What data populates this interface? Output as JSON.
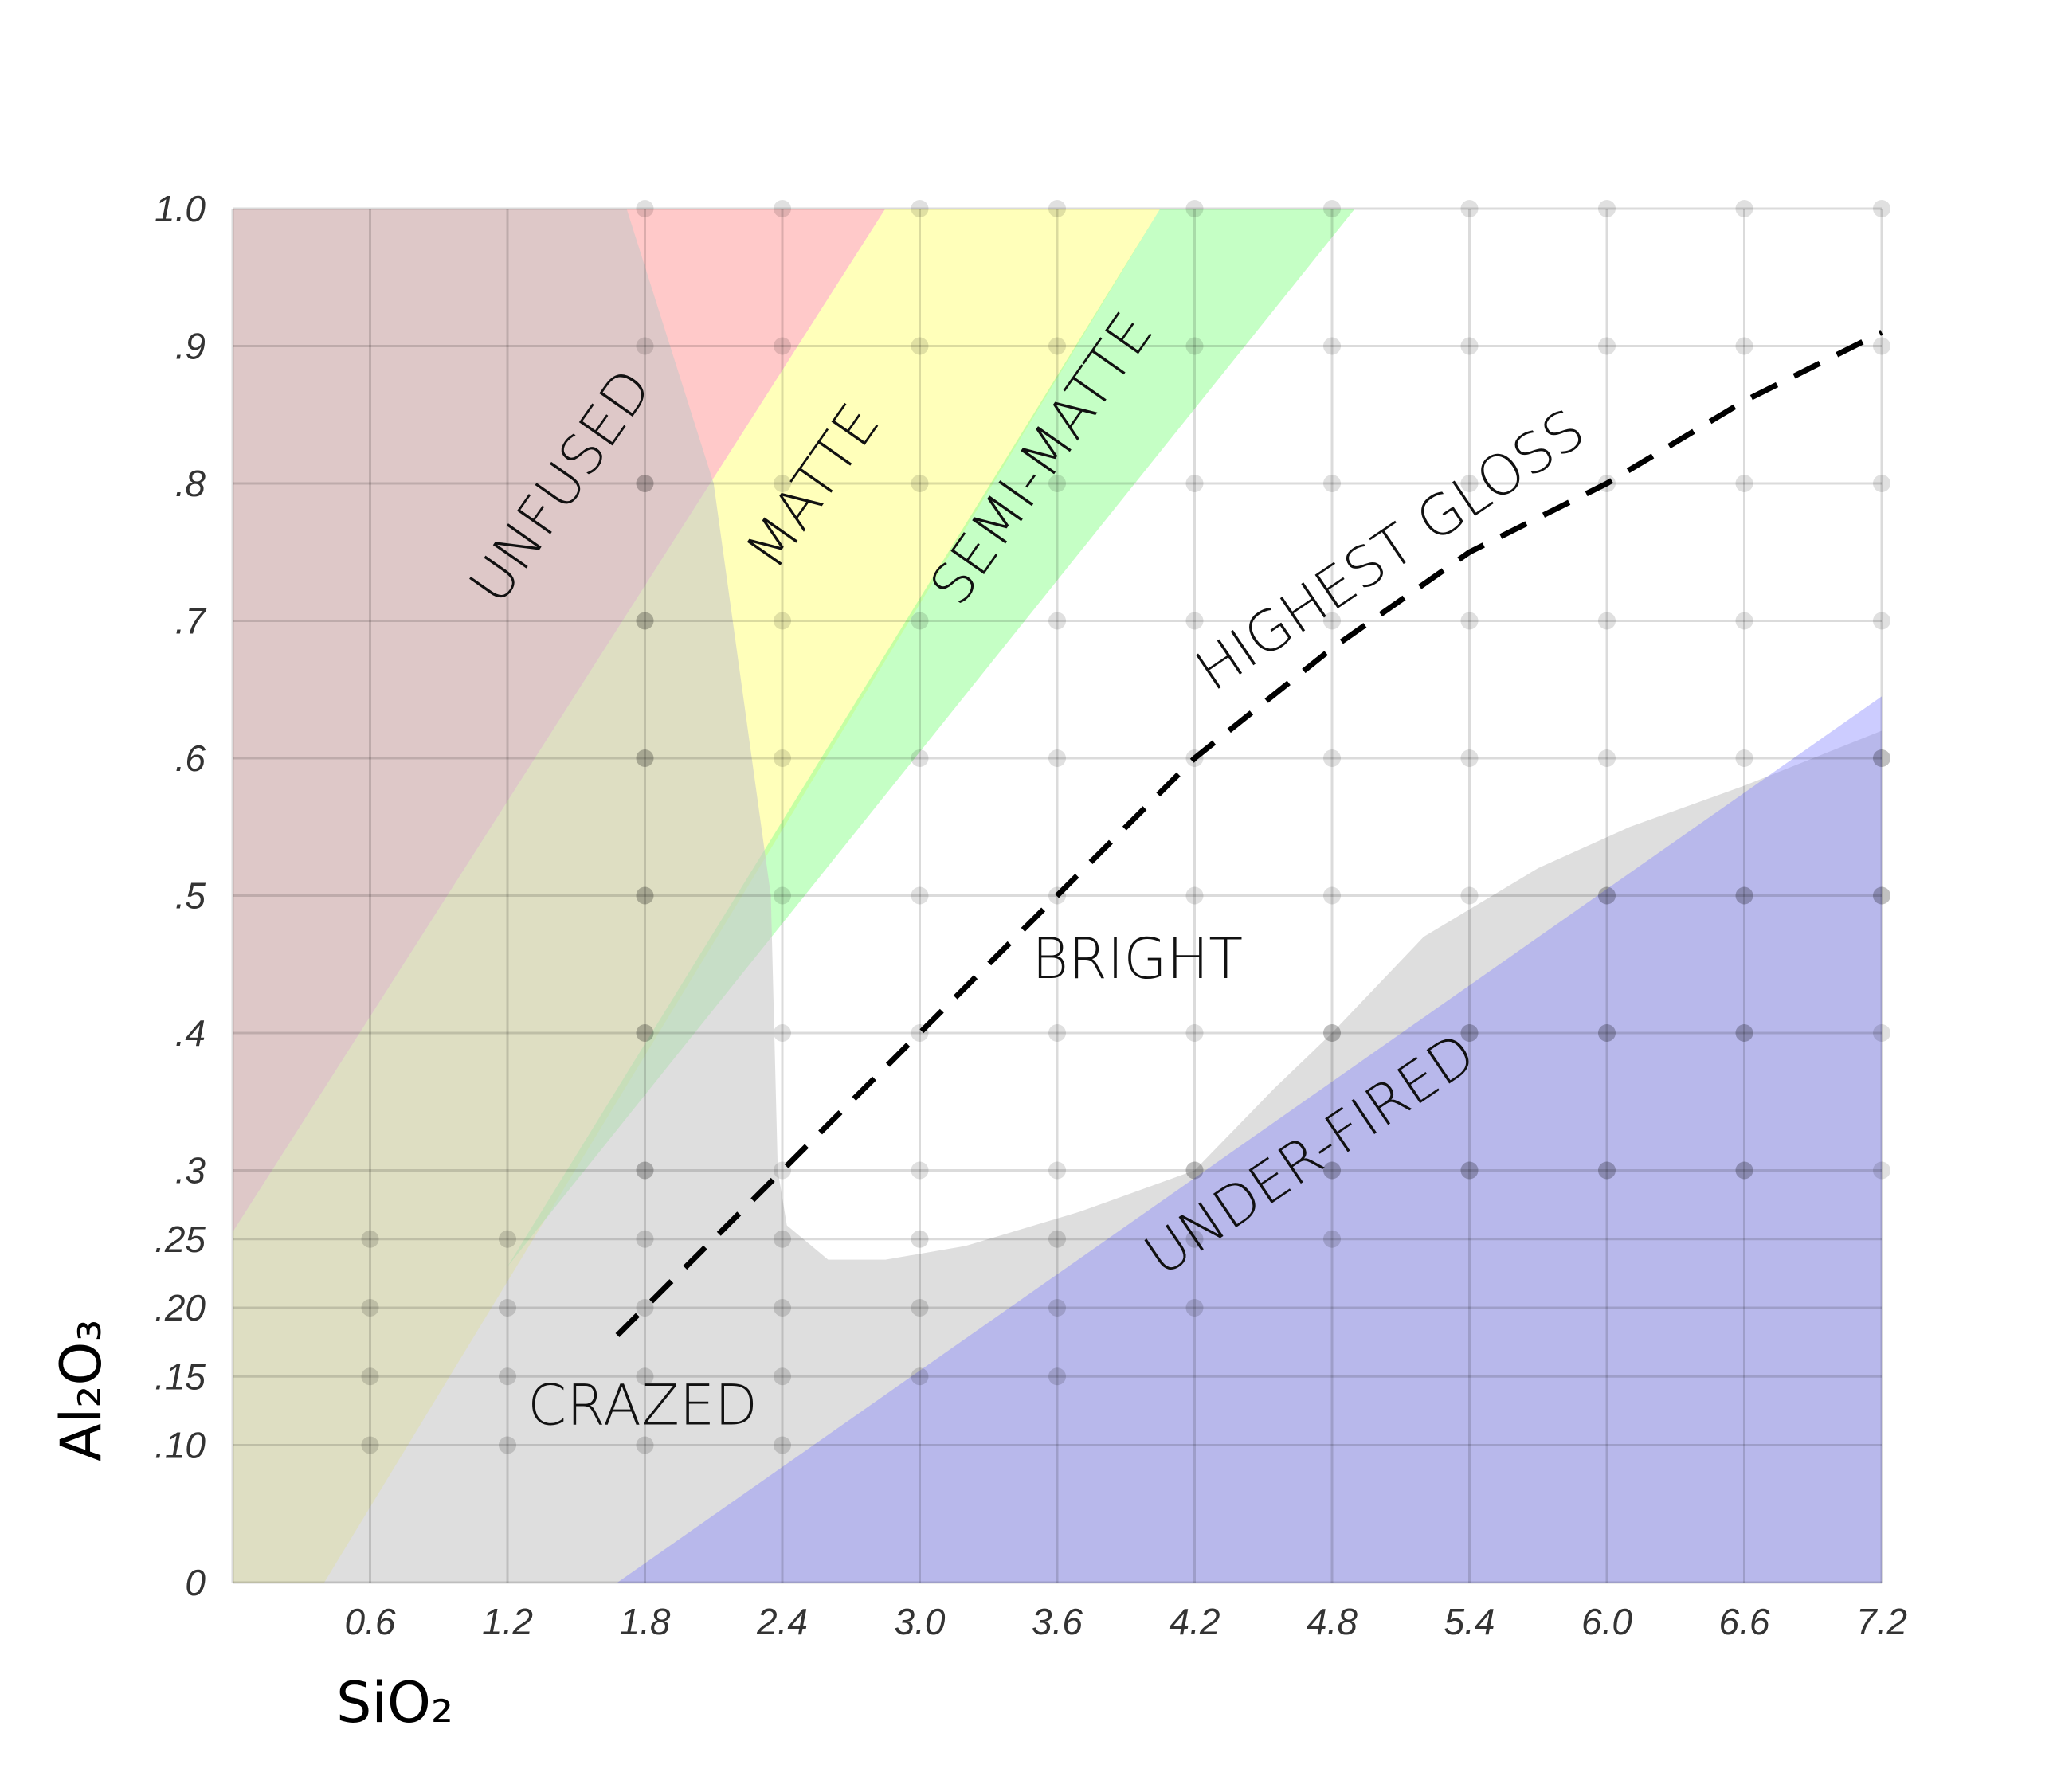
{
  "chart_data": {
    "type": "area",
    "xlabel": "SiO₂",
    "ylabel": "Al₂O₃",
    "xlim": [
      0,
      7.2
    ],
    "ylim": [
      0,
      1.0
    ],
    "grid": true,
    "x_ticks": [
      {
        "value": 0.6,
        "label": "0.6"
      },
      {
        "value": 1.2,
        "label": "1.2"
      },
      {
        "value": 1.8,
        "label": "1.8"
      },
      {
        "value": 2.4,
        "label": "2.4"
      },
      {
        "value": 3.0,
        "label": "3.0"
      },
      {
        "value": 3.6,
        "label": "3.6"
      },
      {
        "value": 4.2,
        "label": "4.2"
      },
      {
        "value": 4.8,
        "label": "4.8"
      },
      {
        "value": 5.4,
        "label": "5.4"
      },
      {
        "value": 6.0,
        "label": "6.0"
      },
      {
        "value": 6.6,
        "label": "6.6"
      },
      {
        "value": 7.2,
        "label": "7.2"
      }
    ],
    "y_ticks": [
      {
        "value": 0,
        "label": "0"
      },
      {
        "value": 0.1,
        "label": ".10"
      },
      {
        "value": 0.15,
        "label": ".15"
      },
      {
        "value": 0.2,
        "label": ".20"
      },
      {
        "value": 0.25,
        "label": ".25"
      },
      {
        "value": 0.3,
        "label": ".3"
      },
      {
        "value": 0.4,
        "label": ".4"
      },
      {
        "value": 0.5,
        "label": ".5"
      },
      {
        "value": 0.6,
        "label": ".6"
      },
      {
        "value": 0.7,
        "label": ".7"
      },
      {
        "value": 0.8,
        "label": ".8"
      },
      {
        "value": 0.9,
        "label": ".9"
      },
      {
        "value": 1.0,
        "label": "1.0"
      }
    ],
    "regions": [
      {
        "label": "UNFUSED",
        "color": "#ff9494",
        "opacity": 0.5,
        "polygon": [
          [
            0,
            1.0
          ],
          [
            2.85,
            1.0
          ],
          [
            0,
            0.255
          ]
        ]
      },
      {
        "label": "MATTE",
        "color": "#ffff8c",
        "opacity": 0.6,
        "polygon": [
          [
            2.85,
            1.0
          ],
          [
            4.05,
            1.0
          ],
          [
            0.4,
            0
          ],
          [
            0,
            0
          ],
          [
            0,
            0.255
          ]
        ]
      },
      {
        "label": "SEMI-MATTE",
        "color": "#8cff8c",
        "opacity": 0.5,
        "polygon": [
          [
            4.05,
            1.0
          ],
          [
            4.9,
            1.0
          ],
          [
            1.2,
            0.23
          ]
        ]
      },
      {
        "label": "CRAZED",
        "color": "#c8c8c8",
        "opacity": 0.6,
        "polygon": [
          [
            1.72,
            1.0
          ],
          [
            2.1,
            0.8
          ],
          [
            2.35,
            0.5
          ],
          [
            2.38,
            0.3
          ],
          [
            2.42,
            0.26
          ],
          [
            2.6,
            0.235
          ],
          [
            2.85,
            0.235
          ],
          [
            3.2,
            0.245
          ],
          [
            3.7,
            0.27
          ],
          [
            4.2,
            0.3
          ],
          [
            4.55,
            0.36
          ],
          [
            4.8,
            0.4
          ],
          [
            5.2,
            0.47
          ],
          [
            5.7,
            0.52
          ],
          [
            6.1,
            0.55
          ],
          [
            6.6,
            0.58
          ],
          [
            7.2,
            0.62
          ],
          [
            7.2,
            0
          ],
          [
            0.4,
            0
          ],
          [
            0,
            0
          ],
          [
            0,
            1.0
          ]
        ]
      },
      {
        "label": "UNDER-FIRED",
        "color": "#8080ff",
        "opacity": 0.4,
        "polygon": [
          [
            1.68,
            0
          ],
          [
            7.2,
            0
          ],
          [
            7.2,
            0.645
          ]
        ]
      }
    ],
    "dark_points": [
      [
        0.6,
        0.1
      ],
      [
        0.6,
        0.15
      ],
      [
        0.6,
        0.2
      ],
      [
        0.6,
        0.25
      ],
      [
        1.2,
        0.1
      ],
      [
        1.2,
        0.15
      ],
      [
        1.2,
        0.2
      ],
      [
        1.2,
        0.25
      ],
      [
        1.8,
        0.1
      ],
      [
        1.8,
        0.15
      ],
      [
        1.8,
        0.2
      ],
      [
        1.8,
        0.25
      ],
      [
        1.8,
        0.3
      ],
      [
        1.8,
        0.4
      ],
      [
        1.8,
        0.5
      ],
      [
        1.8,
        0.6
      ],
      [
        1.8,
        0.7
      ],
      [
        1.8,
        0.8
      ],
      [
        2.4,
        0.1
      ],
      [
        2.4,
        0.15
      ],
      [
        2.4,
        0.2
      ],
      [
        2.4,
        0.25
      ],
      [
        3.0,
        0.15
      ],
      [
        3.0,
        0.2
      ],
      [
        3.0,
        0.25
      ],
      [
        3.6,
        0.15
      ],
      [
        3.6,
        0.2
      ],
      [
        3.6,
        0.25
      ],
      [
        4.2,
        0.2
      ],
      [
        4.2,
        0.25
      ],
      [
        4.2,
        0.3
      ],
      [
        4.8,
        0.25
      ],
      [
        4.8,
        0.3
      ],
      [
        4.8,
        0.4
      ],
      [
        5.4,
        0.3
      ],
      [
        5.4,
        0.4
      ],
      [
        6.0,
        0.3
      ],
      [
        6.0,
        0.4
      ],
      [
        6.0,
        0.5
      ],
      [
        6.6,
        0.3
      ],
      [
        6.6,
        0.4
      ],
      [
        6.6,
        0.5
      ],
      [
        7.2,
        0.5
      ],
      [
        7.2,
        0.6
      ]
    ],
    "highest_gloss_line": {
      "label": "HIGHEST GLOSS",
      "style": "dashed",
      "points": [
        [
          1.68,
          0.18
        ],
        [
          2.4,
          0.3
        ],
        [
          3.0,
          0.4
        ],
        [
          3.6,
          0.5
        ],
        [
          4.2,
          0.6
        ],
        [
          4.8,
          0.68
        ],
        [
          5.4,
          0.75
        ],
        [
          6.0,
          0.8
        ],
        [
          6.6,
          0.86
        ],
        [
          7.2,
          0.91
        ]
      ]
    },
    "labels": [
      {
        "text": "UNFUSED",
        "x": 1.5,
        "y": 0.79,
        "rotation": -55
      },
      {
        "text": "MATTE",
        "x": 2.6,
        "y": 0.79,
        "rotation": -55
      },
      {
        "text": "SEMI-MATTE",
        "x": 3.6,
        "y": 0.81,
        "rotation": -55
      },
      {
        "text": "HIGHEST GLOSS",
        "x": 5.1,
        "y": 0.74,
        "rotation": -34
      },
      {
        "text": "BRIGHT",
        "x": 3.95,
        "y": 0.44,
        "rotation": 0
      },
      {
        "text": "UNDER-FIRED",
        "x": 4.75,
        "y": 0.3,
        "rotation": -34
      },
      {
        "text": "CRAZED",
        "x": 1.79,
        "y": 0.115,
        "rotation": 0
      }
    ]
  }
}
